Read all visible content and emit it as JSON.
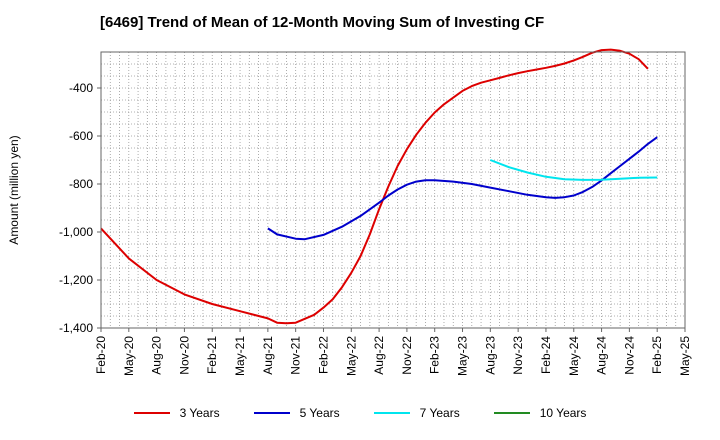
{
  "chart_data": {
    "type": "line",
    "title": "[6469]  Trend of Mean of 12-Month Moving Sum of Investing CF",
    "xlabel": "",
    "ylabel": "Amount (million yen)",
    "ylim": [
      -1400,
      -250
    ],
    "yticks": [
      -1400,
      -1200,
      -1000,
      -800,
      -600,
      -400
    ],
    "ytick_labels": [
      "-1,400",
      "-1,200",
      "-1,000",
      "-800",
      "-600",
      "-400"
    ],
    "x_start": "Feb-20",
    "x_end": "May-25",
    "x_months_span": 63,
    "xtick_labels": [
      "Feb-20",
      "May-20",
      "Aug-20",
      "Nov-20",
      "Feb-21",
      "May-21",
      "Aug-21",
      "Nov-21",
      "Feb-22",
      "May-22",
      "Aug-22",
      "Nov-22",
      "Feb-23",
      "May-23",
      "Aug-23",
      "Nov-23",
      "Feb-24",
      "May-24",
      "Aug-24",
      "Nov-24",
      "Feb-25",
      "May-25"
    ],
    "grid": true,
    "series": [
      {
        "name": "3 Years",
        "color": "#dd0000",
        "points": [
          [
            0,
            -985
          ],
          [
            3,
            -1110
          ],
          [
            6,
            -1200
          ],
          [
            9,
            -1260
          ],
          [
            12,
            -1300
          ],
          [
            15,
            -1330
          ],
          [
            18,
            -1360
          ],
          [
            19,
            -1378
          ],
          [
            20,
            -1380
          ],
          [
            21,
            -1378
          ],
          [
            23,
            -1345
          ],
          [
            24,
            -1315
          ],
          [
            25,
            -1280
          ],
          [
            26,
            -1230
          ],
          [
            27,
            -1170
          ],
          [
            28,
            -1100
          ],
          [
            29,
            -1010
          ],
          [
            30,
            -905
          ],
          [
            31,
            -810
          ],
          [
            32,
            -725
          ],
          [
            33,
            -655
          ],
          [
            34,
            -595
          ],
          [
            35,
            -545
          ],
          [
            36,
            -502
          ],
          [
            37,
            -468
          ],
          [
            38,
            -440
          ],
          [
            39,
            -412
          ],
          [
            40,
            -392
          ],
          [
            41,
            -378
          ],
          [
            42,
            -368
          ],
          [
            43,
            -358
          ],
          [
            44,
            -347
          ],
          [
            45,
            -338
          ],
          [
            46,
            -330
          ],
          [
            47,
            -323
          ],
          [
            48,
            -316
          ],
          [
            49,
            -308
          ],
          [
            50,
            -298
          ],
          [
            51,
            -285
          ],
          [
            52,
            -270
          ],
          [
            53,
            -253
          ],
          [
            54,
            -242
          ],
          [
            55,
            -240
          ],
          [
            56,
            -245
          ],
          [
            57,
            -257
          ],
          [
            58,
            -280
          ],
          [
            59,
            -320
          ]
        ]
      },
      {
        "name": "5 Years",
        "color": "#0000cc",
        "points": [
          [
            18,
            -985
          ],
          [
            19,
            -1010
          ],
          [
            21,
            -1028
          ],
          [
            22,
            -1030
          ],
          [
            24,
            -1012
          ],
          [
            26,
            -978
          ],
          [
            28,
            -933
          ],
          [
            30,
            -878
          ],
          [
            31,
            -848
          ],
          [
            32,
            -823
          ],
          [
            33,
            -803
          ],
          [
            34,
            -790
          ],
          [
            35,
            -784
          ],
          [
            36,
            -784
          ],
          [
            38,
            -790
          ],
          [
            40,
            -800
          ],
          [
            42,
            -815
          ],
          [
            44,
            -830
          ],
          [
            46,
            -845
          ],
          [
            48,
            -855
          ],
          [
            49,
            -858
          ],
          [
            50,
            -855
          ],
          [
            51,
            -848
          ],
          [
            52,
            -833
          ],
          [
            53,
            -812
          ],
          [
            54,
            -785
          ],
          [
            55,
            -755
          ],
          [
            56,
            -725
          ],
          [
            57,
            -695
          ],
          [
            58,
            -665
          ],
          [
            59,
            -633
          ],
          [
            60,
            -605
          ]
        ]
      },
      {
        "name": "7 Years",
        "color": "#00e5ee",
        "points": [
          [
            42,
            -700
          ],
          [
            44,
            -730
          ],
          [
            46,
            -752
          ],
          [
            48,
            -770
          ],
          [
            50,
            -780
          ],
          [
            52,
            -783
          ],
          [
            54,
            -782
          ],
          [
            56,
            -778
          ],
          [
            58,
            -774
          ],
          [
            60,
            -773
          ]
        ]
      },
      {
        "name": "10 Years",
        "color": "#228b22",
        "points": []
      }
    ]
  }
}
